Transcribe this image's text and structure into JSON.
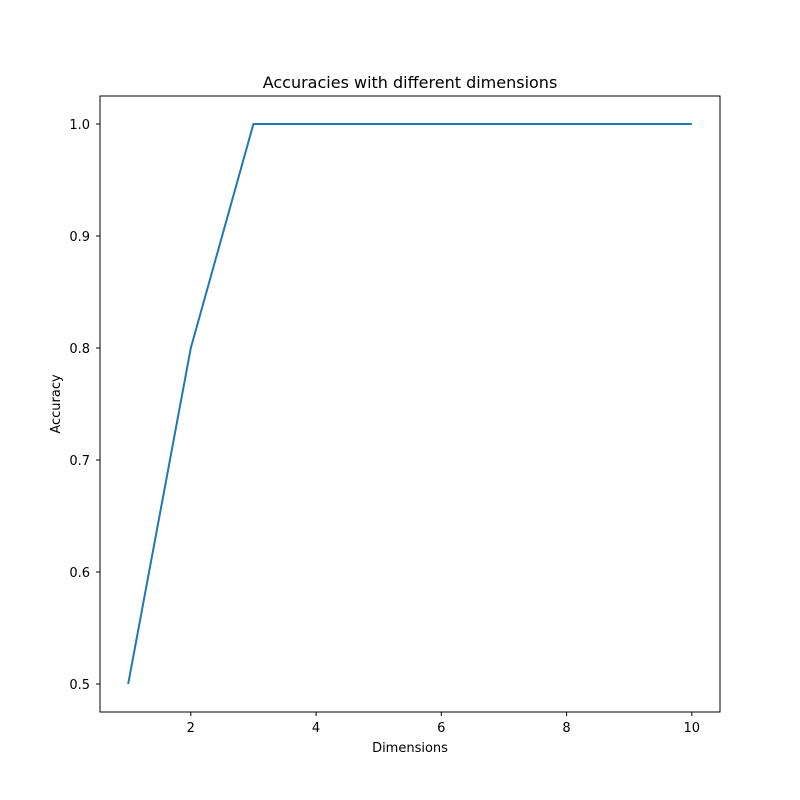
{
  "chart_data": {
    "type": "line",
    "title": "Accuracies with different dimensions",
    "xlabel": "Dimensions",
    "ylabel": "Accuracy",
    "xlim": [
      0.55,
      10.45
    ],
    "ylim": [
      0.475,
      1.025
    ],
    "grid": false,
    "x_ticks": [
      2,
      4,
      6,
      8,
      10
    ],
    "y_ticks": [
      0.5,
      0.6,
      0.7,
      0.8,
      0.9,
      1.0
    ],
    "y_tick_labels": [
      "0.5",
      "0.6",
      "0.7",
      "0.8",
      "0.9",
      "1.0"
    ],
    "series": [
      {
        "color": "#1f77b4",
        "x": [
          1,
          2,
          3,
          4,
          5,
          6,
          7,
          8,
          9,
          10
        ],
        "y": [
          0.5,
          0.8,
          1.0,
          1.0,
          1.0,
          1.0,
          1.0,
          1.0,
          1.0,
          1.0
        ]
      }
    ]
  }
}
